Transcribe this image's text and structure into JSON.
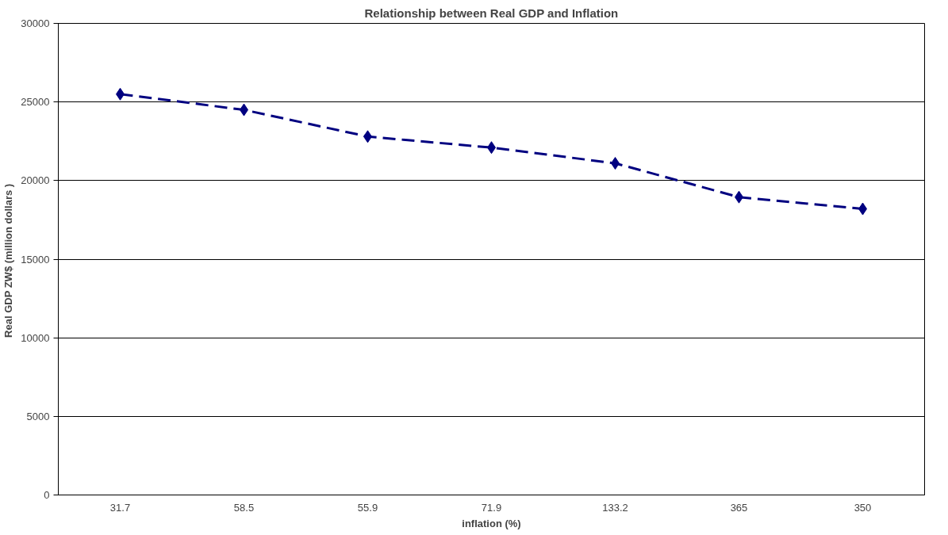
{
  "chart_data": {
    "type": "line",
    "title": "Relationship between Real GDP and Inflation",
    "xlabel": "inflation (%)",
    "ylabel": "Real GDP ZW$ (million  dollars )",
    "categories": [
      "31.7",
      "58.5",
      "55.9",
      "71.9",
      "133.2",
      "365",
      "350"
    ],
    "series": [
      {
        "color": "#000080",
        "values": [
          25500,
          24500,
          22800,
          22100,
          21100,
          18950,
          18200
        ]
      }
    ],
    "ylim": [
      0,
      30000
    ],
    "yticks": [
      0,
      5000,
      10000,
      15000,
      20000,
      25000,
      30000
    ],
    "grid": "y",
    "marker": "diamond",
    "line_style": "dashed"
  }
}
